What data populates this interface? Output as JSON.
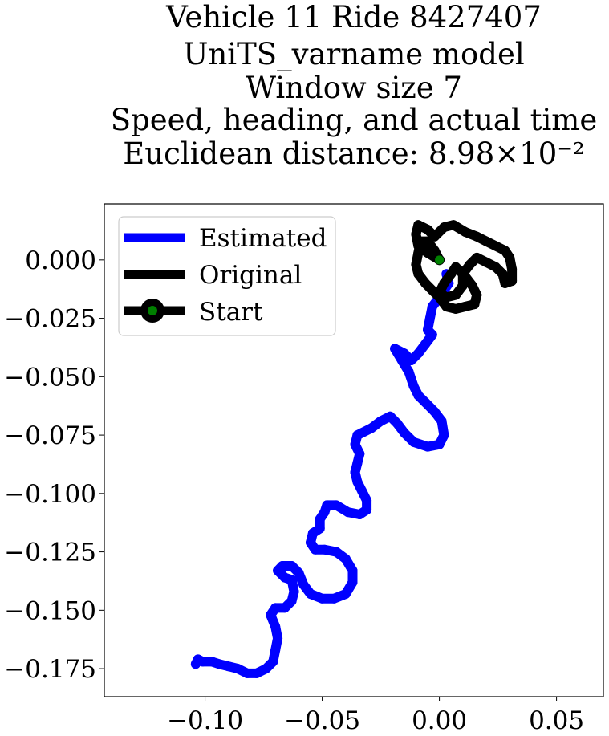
{
  "chart_data": {
    "type": "line",
    "title_lines": [
      "Vehicle 11 Ride 8427407",
      "UniTS_varname model",
      "Window size 7",
      "Speed, heading, and actual time",
      "Euclidean distance: 8.98×10⁻²"
    ],
    "xlabel": "",
    "ylabel": "",
    "xlim": [
      -0.143,
      0.07
    ],
    "ylim": [
      -0.187,
      0.024
    ],
    "x_ticks": [
      -0.1,
      -0.05,
      0.0,
      0.05
    ],
    "x_tick_labels": [
      "−0.10",
      "−0.05",
      "0.00",
      "0.05"
    ],
    "y_ticks": [
      0.0,
      -0.025,
      -0.05,
      -0.075,
      -0.1,
      -0.125,
      -0.15,
      -0.175
    ],
    "y_tick_labels": [
      "0.000",
      "−0.025",
      "−0.050",
      "−0.075",
      "−0.100",
      "−0.125",
      "−0.150",
      "−0.175"
    ],
    "grid": false,
    "legend_position": "upper-left",
    "legend": [
      {
        "label": "Estimated",
        "color": "#0000ff",
        "marker": "none"
      },
      {
        "label": "Original",
        "color": "#000000",
        "marker": "none"
      },
      {
        "label": "Start",
        "color": "#000000",
        "marker": "circle",
        "marker_face": "#008000"
      }
    ],
    "series": [
      {
        "name": "Estimated",
        "color": "#0000ff",
        "points": [
          [
            0.003,
            -0.006
          ],
          [
            0.004,
            -0.01
          ],
          [
            0.0,
            -0.016
          ],
          [
            -0.003,
            -0.02
          ],
          [
            -0.004,
            -0.025
          ],
          [
            -0.005,
            -0.03
          ],
          [
            -0.003,
            -0.032
          ],
          [
            -0.006,
            -0.036
          ],
          [
            -0.009,
            -0.04
          ],
          [
            -0.012,
            -0.043
          ],
          [
            -0.015,
            -0.04
          ],
          [
            -0.019,
            -0.038
          ],
          [
            -0.016,
            -0.043
          ],
          [
            -0.013,
            -0.048
          ],
          [
            -0.011,
            -0.054
          ],
          [
            -0.009,
            -0.058
          ],
          [
            -0.006,
            -0.061
          ],
          [
            -0.002,
            -0.065
          ],
          [
            0.001,
            -0.069
          ],
          [
            0.002,
            -0.075
          ],
          [
            0.0,
            -0.079
          ],
          [
            -0.005,
            -0.08
          ],
          [
            -0.011,
            -0.078
          ],
          [
            -0.015,
            -0.074
          ],
          [
            -0.018,
            -0.07
          ],
          [
            -0.021,
            -0.067
          ],
          [
            -0.025,
            -0.069
          ],
          [
            -0.029,
            -0.072
          ],
          [
            -0.033,
            -0.074
          ],
          [
            -0.035,
            -0.075
          ],
          [
            -0.036,
            -0.079
          ],
          [
            -0.034,
            -0.083
          ],
          [
            -0.035,
            -0.087
          ],
          [
            -0.036,
            -0.091
          ],
          [
            -0.035,
            -0.095
          ],
          [
            -0.033,
            -0.099
          ],
          [
            -0.031,
            -0.103
          ],
          [
            -0.031,
            -0.107
          ],
          [
            -0.034,
            -0.109
          ],
          [
            -0.039,
            -0.108
          ],
          [
            -0.044,
            -0.105
          ],
          [
            -0.048,
            -0.105
          ],
          [
            -0.049,
            -0.108
          ],
          [
            -0.051,
            -0.111
          ],
          [
            -0.051,
            -0.115
          ],
          [
            -0.054,
            -0.117
          ],
          [
            -0.055,
            -0.121
          ],
          [
            -0.053,
            -0.124
          ],
          [
            -0.049,
            -0.124
          ],
          [
            -0.044,
            -0.125
          ],
          [
            -0.04,
            -0.128
          ],
          [
            -0.037,
            -0.133
          ],
          [
            -0.037,
            -0.138
          ],
          [
            -0.04,
            -0.143
          ],
          [
            -0.045,
            -0.145
          ],
          [
            -0.05,
            -0.145
          ],
          [
            -0.055,
            -0.143
          ],
          [
            -0.058,
            -0.139
          ],
          [
            -0.06,
            -0.134
          ],
          [
            -0.063,
            -0.131
          ],
          [
            -0.067,
            -0.131
          ],
          [
            -0.069,
            -0.133
          ],
          [
            -0.066,
            -0.136
          ],
          [
            -0.063,
            -0.137
          ],
          [
            -0.062,
            -0.142
          ],
          [
            -0.063,
            -0.146
          ],
          [
            -0.066,
            -0.149
          ],
          [
            -0.07,
            -0.149
          ],
          [
            -0.072,
            -0.152
          ],
          [
            -0.07,
            -0.157
          ],
          [
            -0.069,
            -0.162
          ],
          [
            -0.07,
            -0.167
          ],
          [
            -0.071,
            -0.172
          ],
          [
            -0.074,
            -0.175
          ],
          [
            -0.078,
            -0.177
          ],
          [
            -0.082,
            -0.177
          ],
          [
            -0.086,
            -0.175
          ],
          [
            -0.09,
            -0.174
          ],
          [
            -0.094,
            -0.173
          ],
          [
            -0.097,
            -0.172
          ],
          [
            -0.101,
            -0.172
          ],
          [
            -0.103,
            -0.171
          ],
          [
            -0.104,
            -0.173
          ]
        ]
      },
      {
        "name": "Original",
        "color": "#000000",
        "points": [
          [
            0.0,
            0.0
          ],
          [
            -0.005,
            0.003
          ],
          [
            -0.009,
            0.006
          ],
          [
            -0.01,
            0.011
          ],
          [
            -0.009,
            0.015
          ],
          [
            -0.005,
            0.013
          ],
          [
            -0.002,
            0.01
          ],
          [
            0.002,
            0.014
          ],
          [
            0.006,
            0.015
          ],
          [
            0.011,
            0.012
          ],
          [
            0.016,
            0.01
          ],
          [
            0.02,
            0.008
          ],
          [
            0.024,
            0.006
          ],
          [
            0.028,
            0.004
          ],
          [
            0.03,
            0.001
          ],
          [
            0.031,
            -0.004
          ],
          [
            0.031,
            -0.009
          ],
          [
            0.028,
            -0.01
          ],
          [
            0.027,
            -0.006
          ],
          [
            0.024,
            -0.003
          ],
          [
            0.02,
            -0.001
          ],
          [
            0.016,
            0.001
          ],
          [
            0.013,
            -0.002
          ],
          [
            0.01,
            -0.006
          ],
          [
            0.01,
            -0.011
          ],
          [
            0.007,
            -0.015
          ],
          [
            0.003,
            -0.016
          ],
          [
            0.0,
            -0.014
          ],
          [
            0.002,
            -0.01
          ],
          [
            0.005,
            -0.006
          ],
          [
            0.007,
            -0.003
          ],
          [
            0.011,
            -0.007
          ],
          [
            0.014,
            -0.011
          ],
          [
            0.016,
            -0.015
          ],
          [
            0.015,
            -0.019
          ],
          [
            0.011,
            -0.02
          ],
          [
            0.007,
            -0.021
          ],
          [
            0.003,
            -0.02
          ],
          [
            0.0,
            -0.016
          ],
          [
            -0.003,
            -0.013
          ],
          [
            -0.006,
            -0.01
          ],
          [
            -0.009,
            -0.006
          ],
          [
            -0.01,
            -0.002
          ],
          [
            -0.009,
            0.003
          ],
          [
            -0.008,
            0.008
          ],
          [
            -0.005,
            0.008
          ],
          [
            -0.002,
            0.004
          ],
          [
            0.0,
            0.0
          ]
        ]
      }
    ],
    "start_point": {
      "x": 0.0,
      "y": 0.0,
      "face_color": "#008000",
      "edge_color": "#000000"
    }
  }
}
